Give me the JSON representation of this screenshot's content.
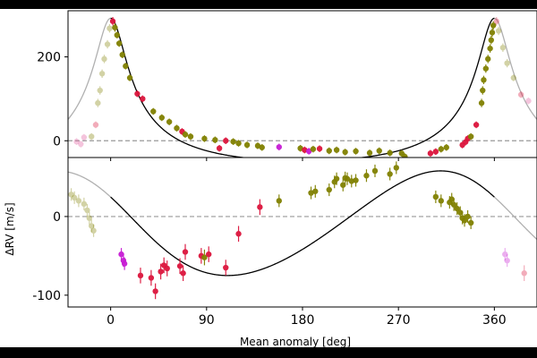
{
  "chart_data": {
    "type": "scatter",
    "description": "Two-panel phased radial-velocity plot with Keplerian model curves",
    "xlabel": "Mean anomaly [deg]",
    "ylabel": "ΔRV [m/s]",
    "x_ticks": [
      0,
      90,
      180,
      270,
      360
    ],
    "xlim": [
      -40,
      400
    ],
    "grid": false,
    "legend": "none",
    "colors": {
      "olive": "#808000",
      "crimson": "#dc143c",
      "magenta": "#c71bd4",
      "pink": "#e05a9e",
      "model": "#000000",
      "wrap_model": "#b0b0b0",
      "zero_line": "#999999"
    },
    "panels": [
      {
        "name": "top",
        "ylim": [
          -40,
          310
        ],
        "y_ticks": [
          0,
          200
        ],
        "model": {
          "type": "keplerian",
          "K": 170,
          "e": 0.62,
          "omega_deg": 0,
          "offset": 30,
          "min": -48,
          "peak": 292
        },
        "points": [
          {
            "x": 2,
            "y": 285,
            "err": 10,
            "c": "crimson"
          },
          {
            "x": 4,
            "y": 270,
            "err": 10,
            "c": "olive"
          },
          {
            "x": 6,
            "y": 252,
            "err": 8,
            "c": "olive"
          },
          {
            "x": 8,
            "y": 232,
            "err": 8,
            "c": "olive"
          },
          {
            "x": 11,
            "y": 205,
            "err": 8,
            "c": "olive"
          },
          {
            "x": 14,
            "y": 178,
            "err": 8,
            "c": "olive"
          },
          {
            "x": 18,
            "y": 150,
            "err": 8,
            "c": "olive"
          },
          {
            "x": 25,
            "y": 112,
            "err": 8,
            "c": "crimson"
          },
          {
            "x": 30,
            "y": 100,
            "err": 8,
            "c": "crimson"
          },
          {
            "x": 40,
            "y": 70,
            "err": 8,
            "c": "olive"
          },
          {
            "x": 48,
            "y": 55,
            "err": 8,
            "c": "olive"
          },
          {
            "x": 55,
            "y": 45,
            "err": 8,
            "c": "olive"
          },
          {
            "x": 62,
            "y": 30,
            "err": 8,
            "c": "olive"
          },
          {
            "x": 67,
            "y": 22,
            "err": 8,
            "c": "crimson"
          },
          {
            "x": 70,
            "y": 15,
            "err": 8,
            "c": "olive"
          },
          {
            "x": 75,
            "y": 10,
            "err": 8,
            "c": "olive"
          },
          {
            "x": 88,
            "y": 5,
            "err": 8,
            "c": "olive"
          },
          {
            "x": 98,
            "y": 2,
            "err": 8,
            "c": "olive"
          },
          {
            "x": 102,
            "y": -18,
            "err": 8,
            "c": "crimson"
          },
          {
            "x": 108,
            "y": 0,
            "err": 8,
            "c": "crimson"
          },
          {
            "x": 115,
            "y": -2,
            "err": 8,
            "c": "olive"
          },
          {
            "x": 120,
            "y": -6,
            "err": 8,
            "c": "olive"
          },
          {
            "x": 128,
            "y": -10,
            "err": 8,
            "c": "olive"
          },
          {
            "x": 138,
            "y": -12,
            "err": 8,
            "c": "olive"
          },
          {
            "x": 142,
            "y": -16,
            "err": 8,
            "c": "olive"
          },
          {
            "x": 158,
            "y": -15,
            "err": 8,
            "c": "magenta"
          },
          {
            "x": 178,
            "y": -18,
            "err": 8,
            "c": "olive"
          },
          {
            "x": 182,
            "y": -22,
            "err": 8,
            "c": "crimson"
          },
          {
            "x": 186,
            "y": -25,
            "err": 8,
            "c": "magenta"
          },
          {
            "x": 190,
            "y": -20,
            "err": 8,
            "c": "olive"
          },
          {
            "x": 196,
            "y": -19,
            "err": 8,
            "c": "crimson"
          },
          {
            "x": 205,
            "y": -24,
            "err": 8,
            "c": "olive"
          },
          {
            "x": 212,
            "y": -22,
            "err": 8,
            "c": "olive"
          },
          {
            "x": 220,
            "y": -27,
            "err": 8,
            "c": "olive"
          },
          {
            "x": 230,
            "y": -25,
            "err": 8,
            "c": "olive"
          },
          {
            "x": 243,
            "y": -29,
            "err": 8,
            "c": "olive"
          },
          {
            "x": 252,
            "y": -24,
            "err": 8,
            "c": "olive"
          },
          {
            "x": 262,
            "y": -29,
            "err": 8,
            "c": "olive"
          },
          {
            "x": 273,
            "y": -30,
            "err": 8,
            "c": "olive"
          },
          {
            "x": 276,
            "y": -38,
            "err": 8,
            "c": "olive"
          },
          {
            "x": 300,
            "y": -30,
            "err": 8,
            "c": "crimson"
          },
          {
            "x": 305,
            "y": -26,
            "err": 8,
            "c": "crimson"
          },
          {
            "x": 310,
            "y": -20,
            "err": 8,
            "c": "olive"
          },
          {
            "x": 315,
            "y": -16,
            "err": 8,
            "c": "olive"
          },
          {
            "x": 330,
            "y": -10,
            "err": 8,
            "c": "crimson"
          },
          {
            "x": 333,
            "y": -3,
            "err": 8,
            "c": "crimson"
          },
          {
            "x": 335,
            "y": 5,
            "err": 8,
            "c": "crimson"
          },
          {
            "x": 338,
            "y": 10,
            "err": 8,
            "c": "olive"
          },
          {
            "x": 343,
            "y": 38,
            "err": 8,
            "c": "crimson"
          },
          {
            "x": 348,
            "y": 90,
            "err": 10,
            "c": "olive"
          },
          {
            "x": 349,
            "y": 120,
            "err": 10,
            "c": "olive"
          },
          {
            "x": 350,
            "y": 145,
            "err": 10,
            "c": "olive"
          },
          {
            "x": 352,
            "y": 172,
            "err": 10,
            "c": "olive"
          },
          {
            "x": 354,
            "y": 195,
            "err": 10,
            "c": "olive"
          },
          {
            "x": 356,
            "y": 220,
            "err": 10,
            "c": "olive"
          },
          {
            "x": 357,
            "y": 240,
            "err": 10,
            "c": "olive"
          },
          {
            "x": 358,
            "y": 258,
            "err": 10,
            "c": "olive"
          },
          {
            "x": 359,
            "y": 275,
            "err": 10,
            "c": "olive"
          }
        ],
        "faded_points": [
          {
            "x": -32,
            "y": -2,
            "err": 8,
            "c": "pink"
          },
          {
            "x": -28,
            "y": -8,
            "err": 8,
            "c": "pink"
          },
          {
            "x": -25,
            "y": 8,
            "err": 8,
            "c": "pink"
          },
          {
            "x": -18,
            "y": 10,
            "err": 8,
            "c": "olive"
          },
          {
            "x": -14,
            "y": 38,
            "err": 8,
            "c": "crimson"
          },
          {
            "x": -12,
            "y": 90,
            "err": 10,
            "c": "olive"
          },
          {
            "x": -10,
            "y": 120,
            "err": 10,
            "c": "olive"
          },
          {
            "x": -8,
            "y": 160,
            "err": 10,
            "c": "olive"
          },
          {
            "x": -6,
            "y": 195,
            "err": 10,
            "c": "olive"
          },
          {
            "x": -3,
            "y": 230,
            "err": 10,
            "c": "olive"
          },
          {
            "x": -1,
            "y": 268,
            "err": 10,
            "c": "olive"
          },
          {
            "x": 362,
            "y": 285,
            "err": 10,
            "c": "crimson"
          },
          {
            "x": 364,
            "y": 262,
            "err": 10,
            "c": "olive"
          },
          {
            "x": 368,
            "y": 222,
            "err": 10,
            "c": "olive"
          },
          {
            "x": 372,
            "y": 185,
            "err": 10,
            "c": "olive"
          },
          {
            "x": 378,
            "y": 150,
            "err": 8,
            "c": "olive"
          },
          {
            "x": 385,
            "y": 110,
            "err": 8,
            "c": "crimson"
          },
          {
            "x": 392,
            "y": 95,
            "err": 8,
            "c": "pink"
          }
        ]
      },
      {
        "name": "bottom",
        "ylim": [
          -115,
          75
        ],
        "y_ticks": [
          0,
          -100
        ],
        "model": {
          "type": "keplerian",
          "K": 65,
          "e": 0.1,
          "omega_deg": 60,
          "offset": -10,
          "min": -75,
          "peak": 58
        },
        "points": [
          {
            "x": 10,
            "y": -48,
            "err": 8,
            "c": "magenta"
          },
          {
            "x": 12,
            "y": -56,
            "err": 8,
            "c": "magenta"
          },
          {
            "x": 13,
            "y": -60,
            "err": 8,
            "c": "magenta"
          },
          {
            "x": 28,
            "y": -75,
            "err": 10,
            "c": "crimson"
          },
          {
            "x": 38,
            "y": -78,
            "err": 10,
            "c": "crimson"
          },
          {
            "x": 42,
            "y": -95,
            "err": 10,
            "c": "crimson"
          },
          {
            "x": 47,
            "y": -70,
            "err": 10,
            "c": "crimson"
          },
          {
            "x": 50,
            "y": -62,
            "err": 10,
            "c": "crimson"
          },
          {
            "x": 53,
            "y": -66,
            "err": 10,
            "c": "crimson"
          },
          {
            "x": 65,
            "y": -63,
            "err": 10,
            "c": "crimson"
          },
          {
            "x": 68,
            "y": -72,
            "err": 10,
            "c": "crimson"
          },
          {
            "x": 70,
            "y": -45,
            "err": 10,
            "c": "crimson"
          },
          {
            "x": 85,
            "y": -50,
            "err": 10,
            "c": "crimson"
          },
          {
            "x": 88,
            "y": -52,
            "err": 10,
            "c": "olive"
          },
          {
            "x": 92,
            "y": -48,
            "err": 10,
            "c": "crimson"
          },
          {
            "x": 108,
            "y": -65,
            "err": 10,
            "c": "crimson"
          },
          {
            "x": 120,
            "y": -22,
            "err": 10,
            "c": "crimson"
          },
          {
            "x": 140,
            "y": 12,
            "err": 10,
            "c": "crimson"
          },
          {
            "x": 158,
            "y": 20,
            "err": 8,
            "c": "olive"
          },
          {
            "x": 188,
            "y": 30,
            "err": 8,
            "c": "olive"
          },
          {
            "x": 192,
            "y": 32,
            "err": 8,
            "c": "olive"
          },
          {
            "x": 205,
            "y": 34,
            "err": 8,
            "c": "olive"
          },
          {
            "x": 210,
            "y": 44,
            "err": 8,
            "c": "olive"
          },
          {
            "x": 212,
            "y": 48,
            "err": 8,
            "c": "olive"
          },
          {
            "x": 218,
            "y": 40,
            "err": 8,
            "c": "olive"
          },
          {
            "x": 220,
            "y": 49,
            "err": 8,
            "c": "olive"
          },
          {
            "x": 222,
            "y": 48,
            "err": 8,
            "c": "olive"
          },
          {
            "x": 226,
            "y": 45,
            "err": 8,
            "c": "olive"
          },
          {
            "x": 230,
            "y": 46,
            "err": 8,
            "c": "olive"
          },
          {
            "x": 240,
            "y": 52,
            "err": 8,
            "c": "olive"
          },
          {
            "x": 248,
            "y": 58,
            "err": 8,
            "c": "olive"
          },
          {
            "x": 262,
            "y": 54,
            "err": 8,
            "c": "olive"
          },
          {
            "x": 268,
            "y": 62,
            "err": 8,
            "c": "olive"
          },
          {
            "x": 305,
            "y": 25,
            "err": 8,
            "c": "olive"
          },
          {
            "x": 310,
            "y": 20,
            "err": 8,
            "c": "olive"
          },
          {
            "x": 318,
            "y": 18,
            "err": 8,
            "c": "olive"
          },
          {
            "x": 320,
            "y": 22,
            "err": 8,
            "c": "olive"
          },
          {
            "x": 322,
            "y": 15,
            "err": 8,
            "c": "olive"
          },
          {
            "x": 325,
            "y": 10,
            "err": 8,
            "c": "olive"
          },
          {
            "x": 328,
            "y": 5,
            "err": 8,
            "c": "olive"
          },
          {
            "x": 330,
            "y": -2,
            "err": 8,
            "c": "olive"
          },
          {
            "x": 332,
            "y": -5,
            "err": 8,
            "c": "olive"
          },
          {
            "x": 335,
            "y": 0,
            "err": 8,
            "c": "olive"
          },
          {
            "x": 338,
            "y": -8,
            "err": 8,
            "c": "olive"
          }
        ],
        "faded_points": [
          {
            "x": -37,
            "y": 28,
            "err": 8,
            "c": "olive"
          },
          {
            "x": -34,
            "y": 24,
            "err": 8,
            "c": "olive"
          },
          {
            "x": -30,
            "y": 20,
            "err": 8,
            "c": "olive"
          },
          {
            "x": -25,
            "y": 16,
            "err": 8,
            "c": "olive"
          },
          {
            "x": -22,
            "y": 8,
            "err": 8,
            "c": "olive"
          },
          {
            "x": -20,
            "y": -2,
            "err": 8,
            "c": "olive"
          },
          {
            "x": -18,
            "y": -12,
            "err": 8,
            "c": "olive"
          },
          {
            "x": -16,
            "y": -18,
            "err": 8,
            "c": "olive"
          },
          {
            "x": 370,
            "y": -48,
            "err": 8,
            "c": "magenta"
          },
          {
            "x": 372,
            "y": -56,
            "err": 8,
            "c": "magenta"
          },
          {
            "x": 388,
            "y": -72,
            "err": 10,
            "c": "crimson"
          }
        ]
      }
    ]
  }
}
